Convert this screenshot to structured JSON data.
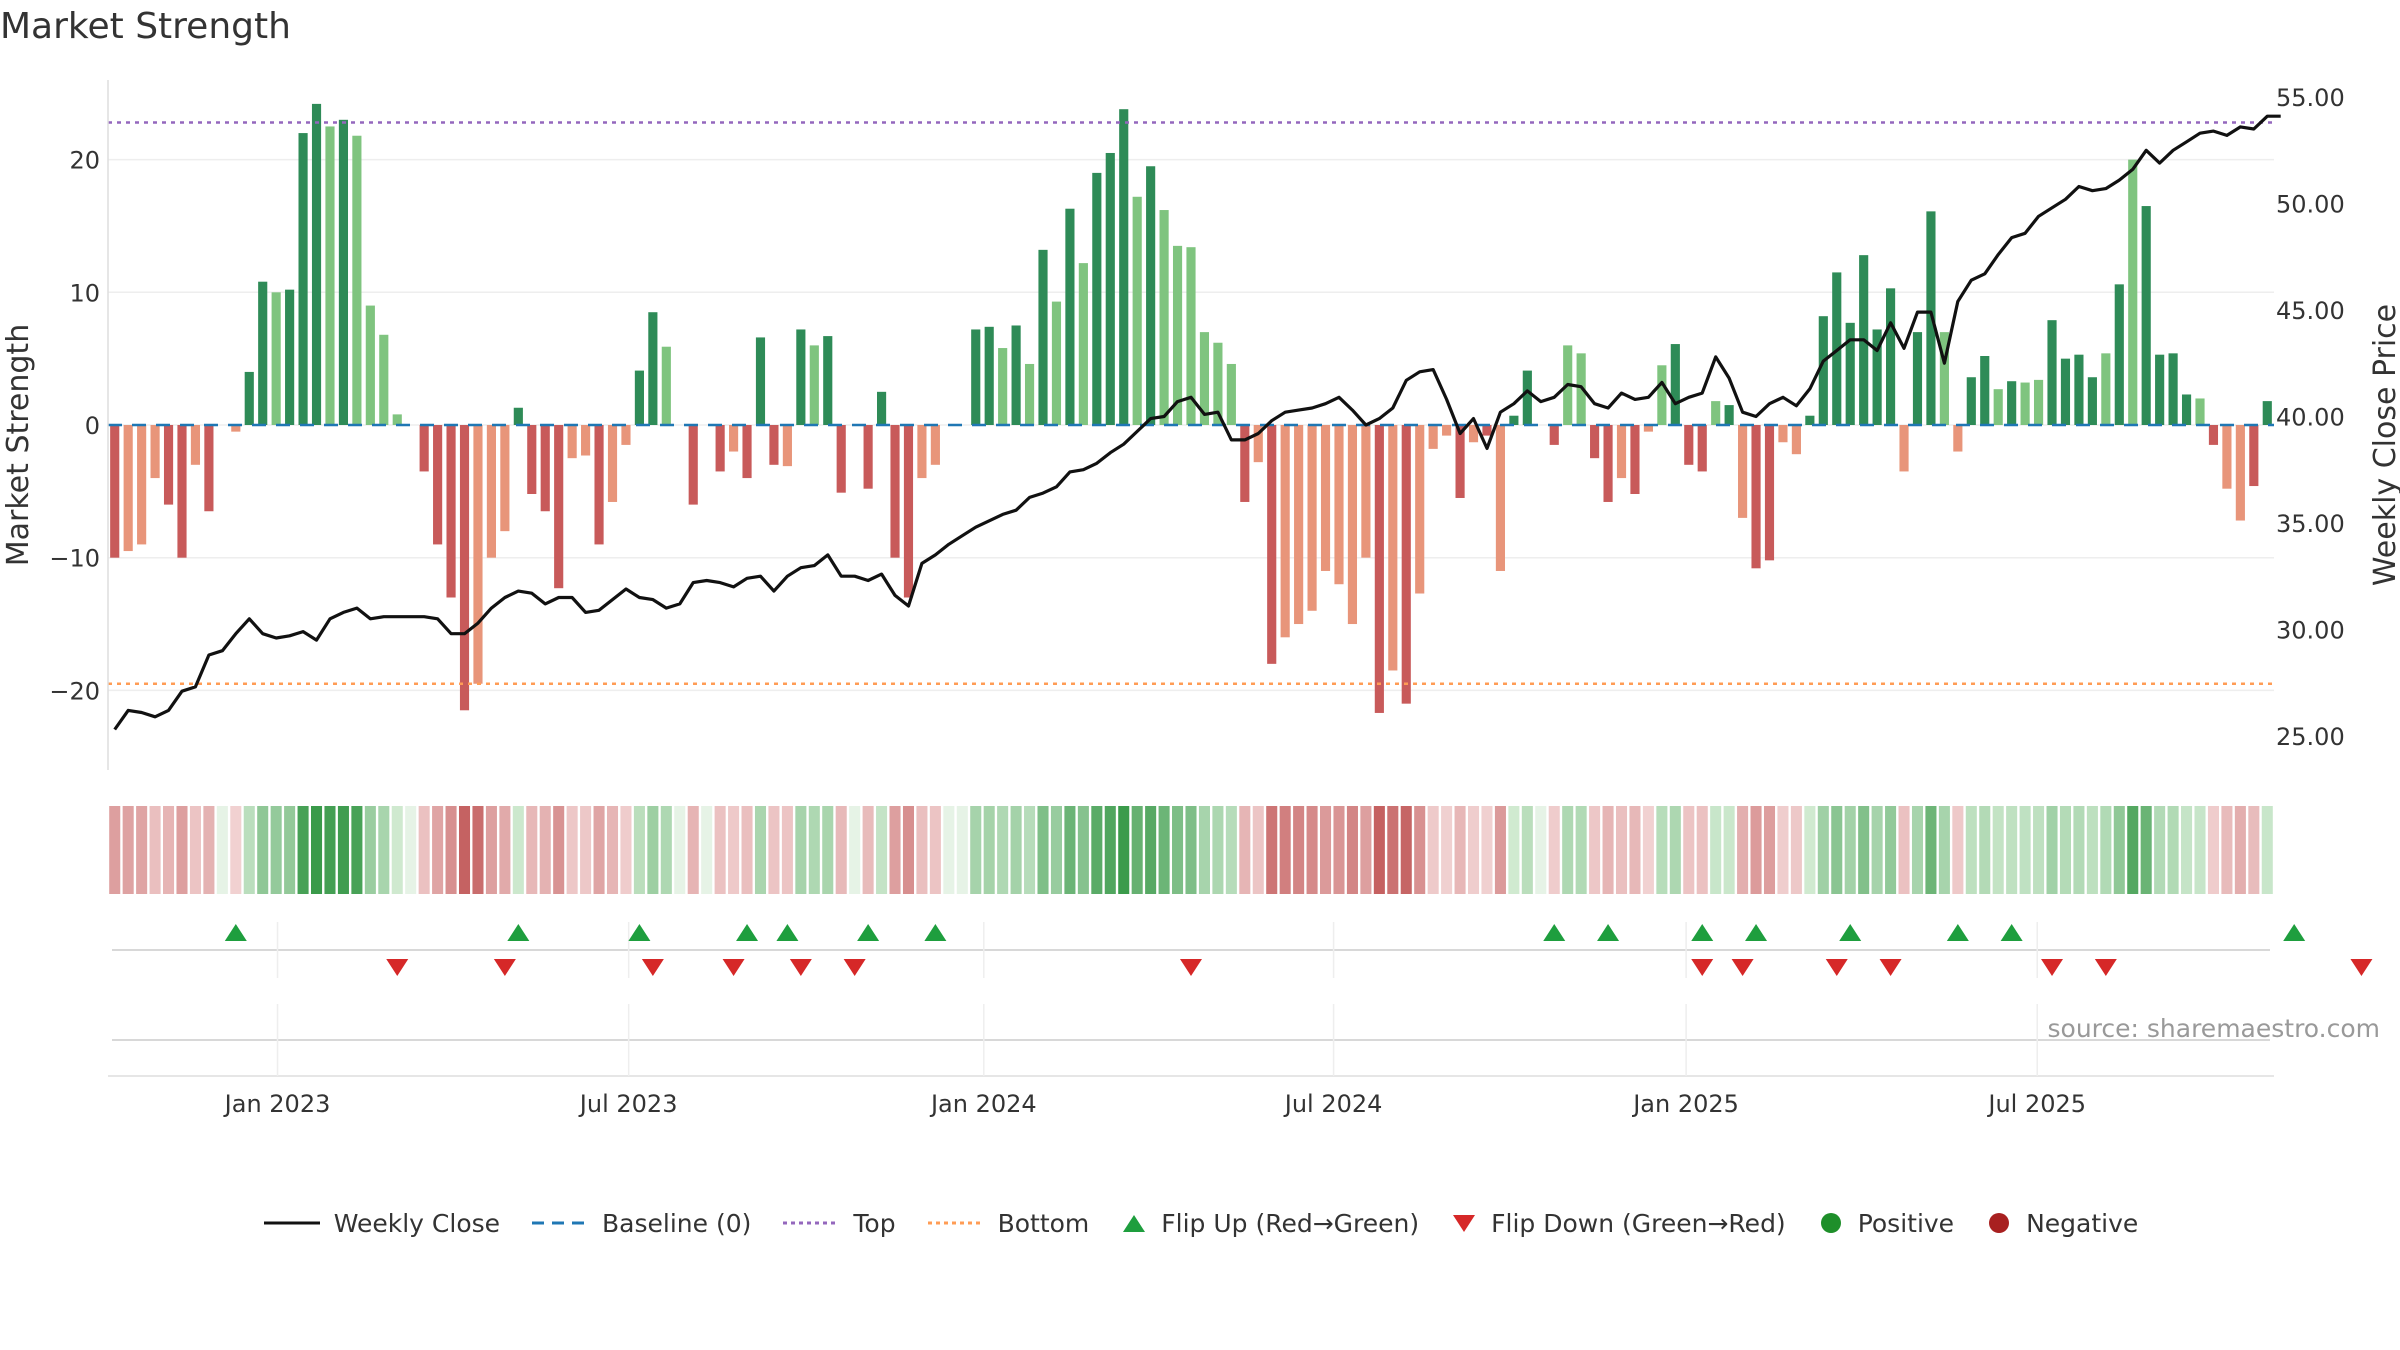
{
  "title": "Market Strength",
  "source": "source: sharemaestro.com",
  "colors": {
    "close": "#111111",
    "baseline": "#1f77b4",
    "top": "#9467bd",
    "bottom": "#ff9c55",
    "strong_green": "#2e8b57",
    "light_green": "#7fc47f",
    "strong_red": "#c85a5a",
    "light_red": "#e8957a",
    "flip_up": "#1e9e3e",
    "flip_down": "#d62828",
    "positive": "#1e8f2a",
    "negative": "#a82020"
  },
  "chart_data": {
    "type": "bar",
    "title": "Market Strength",
    "ylabel": "Market Strength",
    "y2label": "Weekly Close Price",
    "ylim": [
      -26,
      26
    ],
    "y2lim": [
      23.4,
      55.8
    ],
    "yticks": [
      -20,
      -10,
      0,
      10,
      20
    ],
    "ytick_labels": [
      "−20",
      "−10",
      "0",
      "10",
      "20"
    ],
    "y2ticks": [
      25,
      30,
      35,
      40,
      45,
      50,
      55
    ],
    "y2tick_labels": [
      "25.00",
      "30.00",
      "35.00",
      "40.00",
      "45.00",
      "50.00",
      "55.00"
    ],
    "top_level": 22.8,
    "bottom_level": -19.5,
    "x_start": "2022-10-07",
    "x_end": "2025-09-23",
    "xticks": [
      "Jan 2023",
      "Jul 2023",
      "Jan 2024",
      "Jul 2024",
      "Jan 2025",
      "Jul 2025"
    ],
    "xtick_weeks": [
      12.6,
      38.7,
      65.1,
      91.1,
      117.3,
      143.4
    ],
    "strength": [
      -10,
      -9.5,
      -9,
      -4,
      -6,
      -10,
      -3,
      -6.5,
      0,
      -0.5,
      4,
      10.8,
      10,
      10.2,
      22,
      24.2,
      22.5,
      23,
      21.8,
      9,
      6.8,
      0.8,
      0,
      -3.5,
      -9,
      -13,
      -21.5,
      -19.5,
      -10,
      -8,
      1.3,
      -5.2,
      -6.5,
      -12.3,
      -2.5,
      -2.3,
      -9,
      -5.8,
      -1.5,
      4.1,
      8.5,
      5.9,
      0,
      -6,
      0,
      -3.5,
      -2,
      -4,
      6.6,
      -3,
      -3.1,
      7.2,
      6,
      6.7,
      -5.1,
      0,
      -4.8,
      2.5,
      -10,
      -13,
      -4,
      -3,
      0,
      0,
      7.2,
      7.4,
      5.8,
      7.5,
      4.6,
      13.2,
      9.3,
      16.3,
      12.2,
      19,
      20.5,
      23.8,
      17.2,
      19.5,
      16.2,
      13.5,
      13.4,
      7,
      6.2,
      4.6,
      -5.8,
      -2.8,
      -18,
      -16,
      -15,
      -14,
      -11,
      -12,
      -15,
      -10,
      -21.7,
      -18.5,
      -21,
      -12.7,
      -1.8,
      -0.8,
      -5.5,
      -1.3,
      -0.8,
      -11,
      0.7,
      4.1,
      0,
      -1.5,
      6,
      5.4,
      -2.5,
      -5.8,
      -4,
      -5.2,
      -0.5,
      4.5,
      6.1,
      -3,
      -3.5,
      1.8,
      1.5,
      -7,
      -10.8,
      -10.2,
      -1.3,
      -2.2,
      0.7,
      8.2,
      11.5,
      7.7,
      12.8,
      7.2,
      10.3,
      -3.5,
      7,
      16.1,
      7,
      -2,
      3.6,
      5.2,
      2.7,
      3.3,
      3.2,
      3.4,
      7.9,
      5,
      5.3,
      3.6,
      5.4,
      10.6,
      20,
      16.5,
      5.3,
      5.4,
      2.3,
      2,
      -1.5,
      -4.8,
      -7.2,
      -4.6,
      1.8
    ],
    "shade": [
      1,
      0,
      0,
      0,
      1,
      1,
      0,
      1,
      0,
      0,
      1,
      1,
      0,
      1,
      1,
      1,
      0,
      1,
      0,
      0,
      0,
      0,
      0,
      1,
      1,
      1,
      1,
      0,
      0,
      0,
      1,
      1,
      1,
      1,
      0,
      0,
      1,
      0,
      0,
      1,
      1,
      0,
      0,
      1,
      0,
      1,
      0,
      1,
      1,
      1,
      0,
      1,
      0,
      1,
      1,
      0,
      1,
      1,
      1,
      1,
      0,
      0,
      0,
      0,
      1,
      1,
      0,
      1,
      0,
      1,
      0,
      1,
      0,
      1,
      1,
      1,
      0,
      1,
      0,
      0,
      0,
      0,
      0,
      0,
      1,
      0,
      1,
      0,
      0,
      0,
      0,
      0,
      0,
      0,
      1,
      0,
      1,
      0,
      0,
      0,
      1,
      0,
      1,
      0,
      1,
      1,
      1,
      1,
      0,
      0,
      1,
      1,
      0,
      1,
      0,
      0,
      1,
      1,
      1,
      0,
      1,
      0,
      1,
      1,
      0,
      0,
      1,
      1,
      1,
      1,
      1,
      1,
      1,
      0,
      1,
      1,
      0,
      0,
      1,
      1,
      0,
      1,
      0,
      0,
      1,
      1,
      1,
      1,
      0,
      1,
      0,
      1,
      1,
      1,
      1,
      0,
      1,
      0,
      0,
      1,
      1,
      0,
      1,
      0,
      1
    ],
    "weekly_close": [
      25.3,
      26.2,
      26.1,
      25.9,
      26.2,
      27.1,
      27.3,
      28.8,
      29.0,
      29.8,
      30.5,
      29.8,
      29.6,
      29.7,
      29.9,
      29.5,
      30.5,
      30.8,
      31.0,
      30.5,
      30.6,
      30.6,
      30.6,
      30.6,
      30.5,
      29.8,
      29.8,
      30.3,
      31.0,
      31.5,
      31.8,
      31.7,
      31.2,
      31.5,
      31.5,
      30.8,
      30.9,
      31.4,
      31.9,
      31.5,
      31.4,
      31.0,
      31.2,
      32.2,
      32.3,
      32.2,
      32.0,
      32.4,
      32.5,
      31.8,
      32.5,
      32.9,
      33.0,
      33.5,
      32.5,
      32.5,
      32.3,
      32.6,
      31.6,
      31.1,
      33.1,
      33.5,
      34.0,
      34.4,
      34.8,
      35.1,
      35.4,
      35.6,
      36.2,
      36.4,
      36.7,
      37.4,
      37.5,
      37.8,
      38.3,
      38.7,
      39.3,
      39.9,
      40.0,
      40.7,
      40.9,
      40.1,
      40.2,
      38.9,
      38.9,
      39.2,
      39.8,
      40.2,
      40.3,
      40.4,
      40.6,
      40.9,
      40.3,
      39.6,
      39.9,
      40.4,
      41.7,
      42.1,
      42.2,
      40.8,
      39.2,
      39.9,
      38.5,
      40.2,
      40.6,
      41.2,
      40.7,
      40.9,
      41.5,
      41.4,
      40.6,
      40.4,
      41.1,
      40.8,
      40.9,
      41.6,
      40.6,
      40.9,
      41.1,
      42.8,
      41.8,
      40.2,
      40.0,
      40.6,
      40.9,
      40.5,
      41.3,
      42.6,
      43.1,
      43.6,
      43.6,
      43.1,
      44.4,
      43.2,
      44.9,
      44.9,
      42.5,
      45.4,
      46.4,
      46.7,
      47.6,
      48.4,
      48.6,
      49.4,
      49.8,
      50.2,
      50.8,
      50.6,
      50.7,
      51.1,
      51.6,
      52.5,
      51.9,
      52.5,
      52.9,
      53.3,
      53.4,
      53.2,
      53.6,
      53.5,
      54.1,
      54.1
    ],
    "flip_up_weeks": [
      9,
      30,
      39,
      47,
      50,
      56,
      61,
      107,
      111,
      118,
      122,
      129,
      137,
      141,
      162
    ],
    "flip_down_weeks": [
      21,
      29,
      40,
      46,
      51,
      55,
      80,
      118,
      121,
      128,
      132,
      144,
      148,
      167
    ],
    "legend": [
      {
        "label": "Weekly Close",
        "kind": "line-solid",
        "color_key": "close"
      },
      {
        "label": "Baseline (0)",
        "kind": "line-dash",
        "color_key": "baseline"
      },
      {
        "label": "Top",
        "kind": "line-dot",
        "color_key": "top"
      },
      {
        "label": "Bottom",
        "kind": "line-dot",
        "color_key": "bottom"
      },
      {
        "label": "Flip Up (Red→Green)",
        "kind": "tri-up",
        "color_key": "flip_up"
      },
      {
        "label": "Flip Down (Green→Red)",
        "kind": "tri-down",
        "color_key": "flip_down"
      },
      {
        "label": "Positive",
        "kind": "dot",
        "color_key": "positive"
      },
      {
        "label": "Negative",
        "kind": "dot",
        "color_key": "negative"
      }
    ]
  }
}
